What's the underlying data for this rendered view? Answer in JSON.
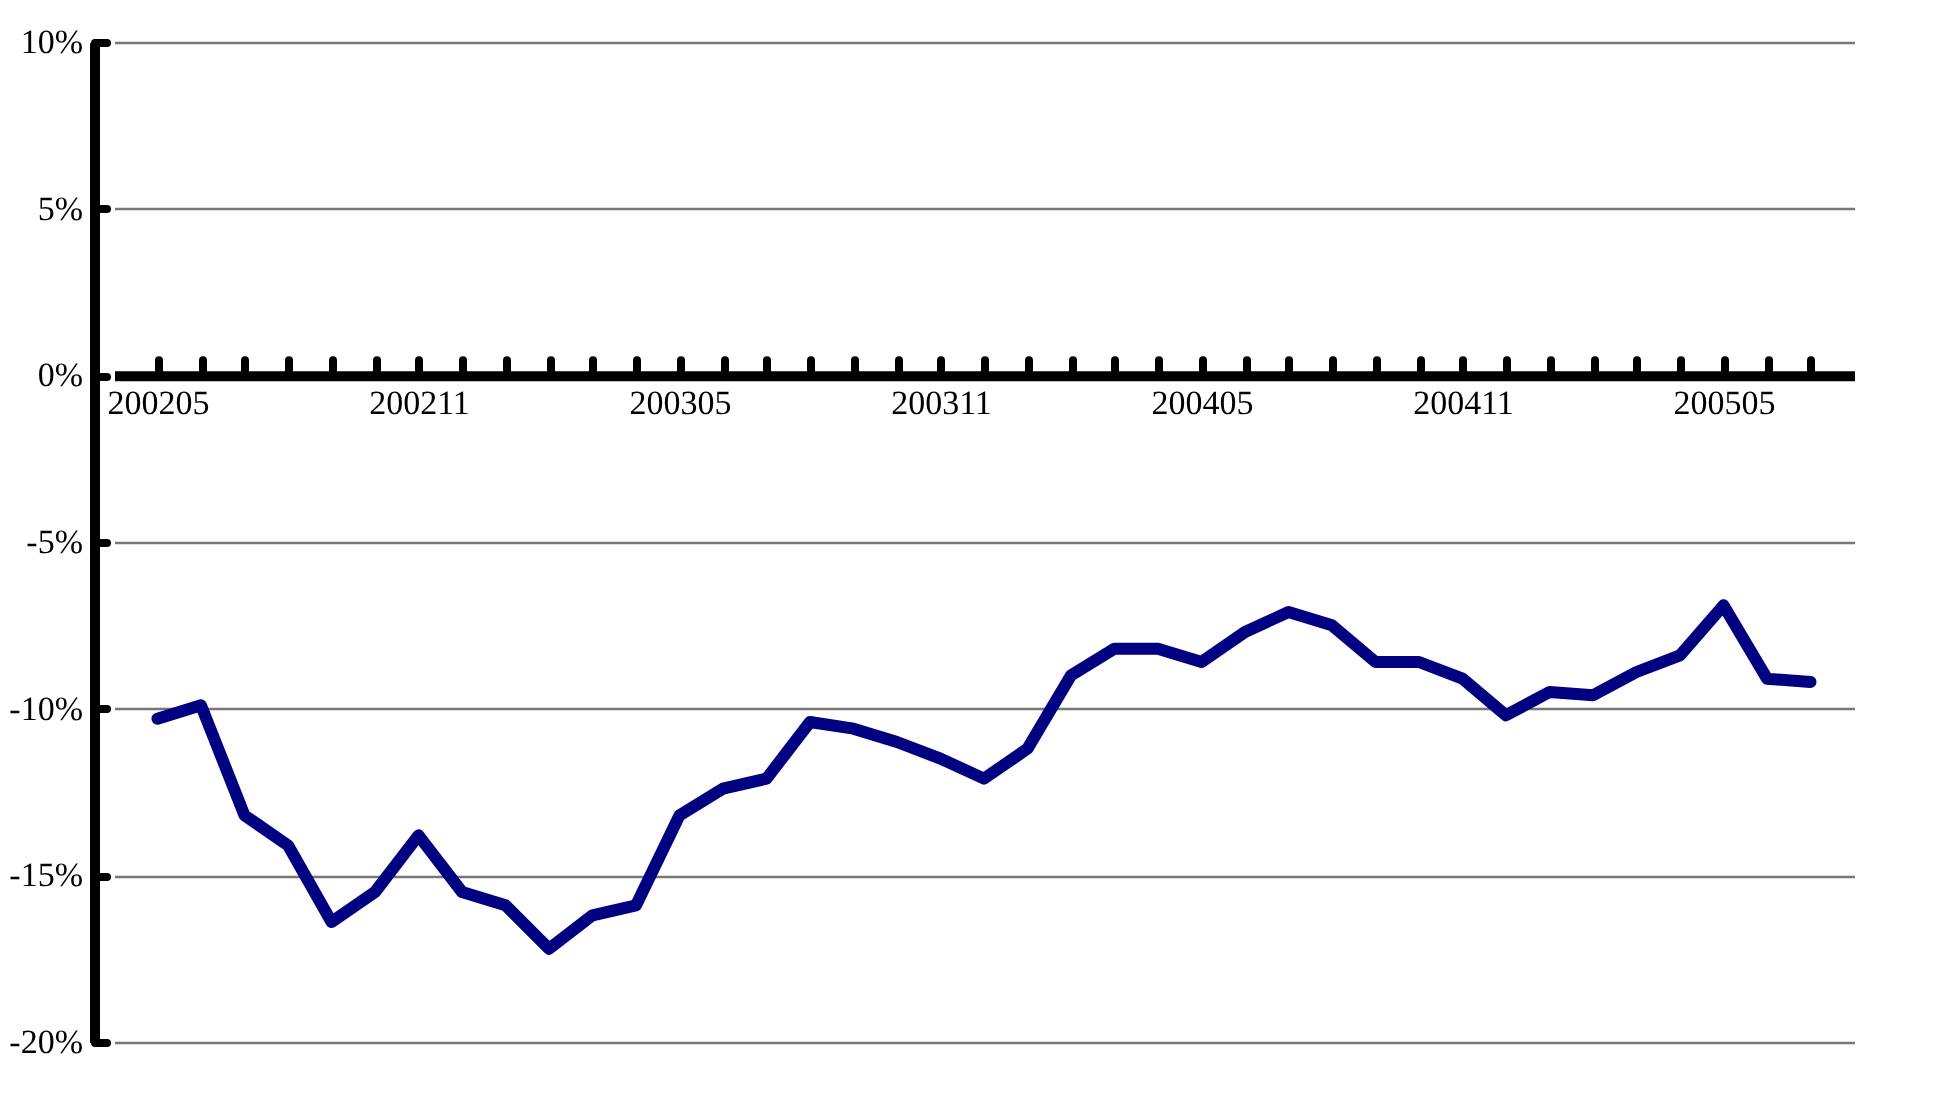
{
  "chart_data": {
    "type": "line",
    "categories": [
      "200205",
      null,
      null,
      null,
      null,
      null,
      "200211",
      null,
      null,
      null,
      null,
      null,
      "200305",
      null,
      null,
      null,
      null,
      null,
      "200311",
      null,
      null,
      null,
      null,
      null,
      "200405",
      null,
      null,
      null,
      null,
      null,
      "200411",
      null,
      null,
      null,
      null,
      null,
      "200505",
      null,
      null
    ],
    "series": [
      {
        "color": "#000080",
        "values": [
          -10.3,
          -9.9,
          -13.2,
          -14.1,
          -16.4,
          -15.5,
          -13.8,
          -15.5,
          -15.9,
          -17.2,
          -16.2,
          -15.9,
          -13.2,
          -12.4,
          -12.1,
          -10.4,
          -10.6,
          -11.0,
          -11.5,
          -12.1,
          -11.2,
          -9.0,
          -8.2,
          -8.2,
          -8.6,
          -7.7,
          -7.1,
          -7.5,
          -8.6,
          -8.6,
          -9.1,
          -10.2,
          -9.5,
          -9.6,
          -8.9,
          -8.4,
          -6.9,
          -9.1,
          -9.2
        ]
      }
    ],
    "ylim": [
      -20,
      10
    ],
    "yticks": [
      {
        "value": -20,
        "label": "-20%"
      },
      {
        "value": -15,
        "label": "-15%"
      },
      {
        "value": -10,
        "label": "-10%"
      },
      {
        "value": -5,
        "label": "-5%"
      },
      {
        "value": 0,
        "label": "0%"
      },
      {
        "value": 5,
        "label": "5%"
      },
      {
        "value": 10,
        "label": "10%"
      }
    ],
    "grid": "y",
    "marker": "none",
    "line_style": "solid"
  }
}
